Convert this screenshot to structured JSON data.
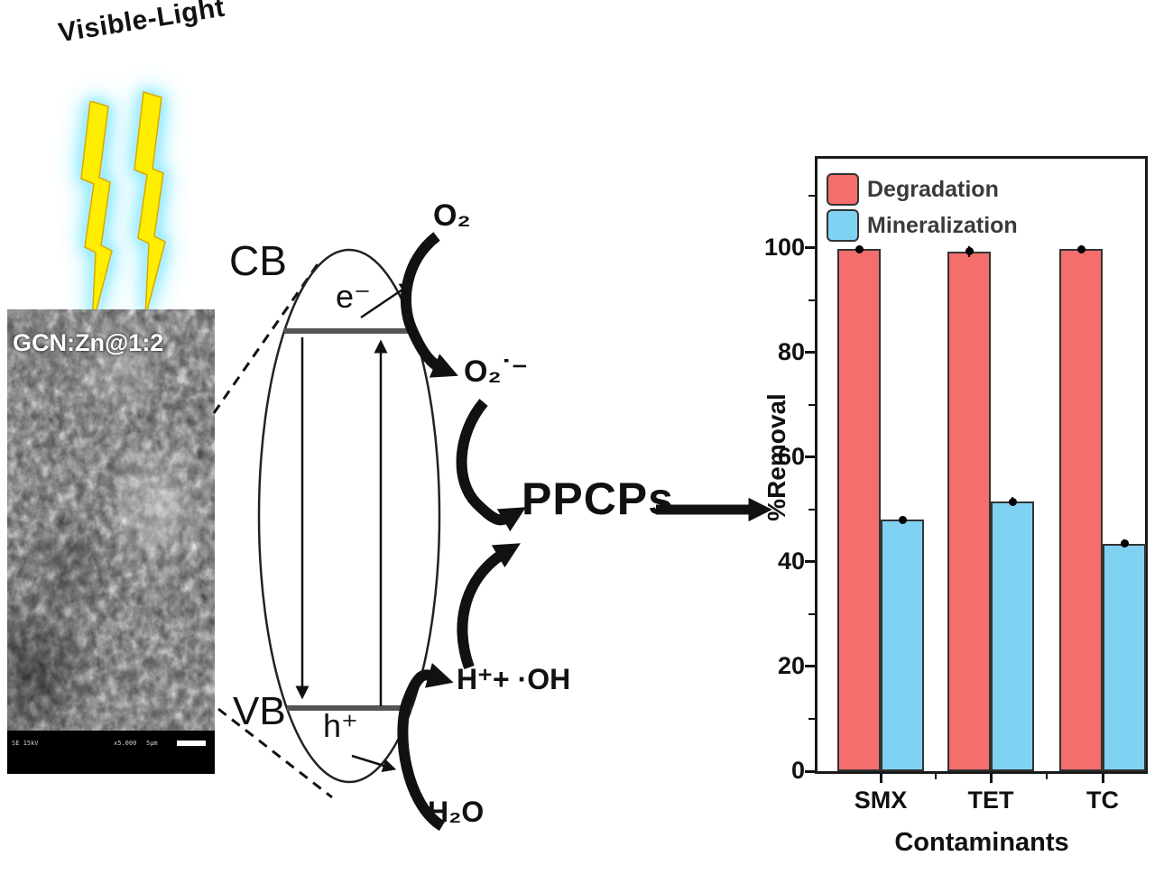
{
  "scene": {
    "visible_light": "Visible-Light"
  },
  "sem": {
    "label": "GCN:Zn@1:2",
    "meta_1": "SE 15kV",
    "meta_2": "x5.000",
    "meta_3": "5µm"
  },
  "mechanism": {
    "cb": "CB",
    "vb": "VB",
    "electron": "e⁻",
    "hole": "h⁺",
    "o2": "O₂",
    "superoxide": "O₂˙⁻",
    "h_oh": "H⁺+ ·OH",
    "h2o": "H₂O",
    "ppcps": "PPCPs"
  },
  "chart_data": {
    "type": "bar",
    "title": "",
    "xlabel": "Contaminants",
    "ylabel": "%Removal",
    "categories": [
      "SMX",
      "TET",
      "TC"
    ],
    "series": [
      {
        "name": "Degradation",
        "color": "#f56e6e",
        "values": [
          99.7,
          99.3,
          99.7
        ],
        "errors": [
          0.8,
          1.0,
          0.8
        ]
      },
      {
        "name": "Mineralization",
        "color": "#7fd2f2",
        "values": [
          48.0,
          51.5,
          43.5
        ],
        "errors": [
          0.8,
          0.8,
          0.7
        ]
      }
    ],
    "ylim": [
      0,
      117
    ],
    "yticks": [
      0,
      20,
      40,
      60,
      80,
      100
    ],
    "minor_ticks": [
      10,
      30,
      50,
      70,
      90,
      110
    ],
    "legend_position": "top-left",
    "grid": false
  }
}
